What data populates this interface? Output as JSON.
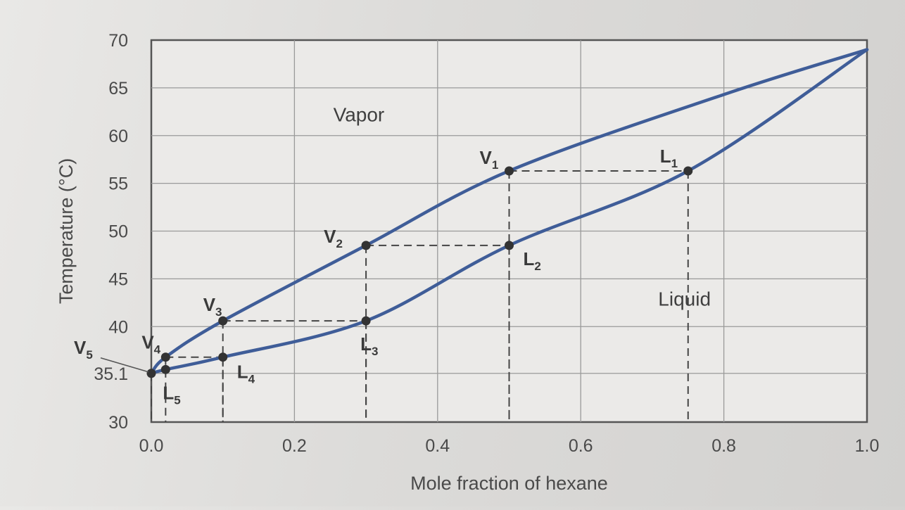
{
  "chart_data": {
    "type": "line",
    "title": "",
    "xlabel": "Mole fraction of hexane",
    "ylabel": "Temperature (°C)",
    "xlim": [
      0.0,
      1.0
    ],
    "ylim": [
      30,
      70
    ],
    "grid": true,
    "x_ticks": [
      "0.0",
      "0.2",
      "0.4",
      "0.6",
      "0.8",
      "1.0"
    ],
    "y_ticks": [
      "30",
      "35.1",
      "40",
      "45",
      "50",
      "55",
      "60",
      "65",
      "70"
    ],
    "y_tick_values": [
      30,
      35.1,
      40,
      45,
      50,
      55,
      60,
      65,
      70
    ],
    "series": [
      {
        "curve": "vapor",
        "color": "#3f5d98",
        "x": [
          0.0,
          0.02,
          0.1,
          0.3,
          0.5,
          0.8,
          1.0
        ],
        "y": [
          35.1,
          36.8,
          40.6,
          48.5,
          56.3,
          64.3,
          69.0
        ]
      },
      {
        "curve": "liquid",
        "color": "#3f5d98",
        "x": [
          0.0,
          0.02,
          0.1,
          0.3,
          0.5,
          0.75,
          1.0
        ],
        "y": [
          35.1,
          35.5,
          36.8,
          40.6,
          48.5,
          56.3,
          69.0
        ]
      }
    ],
    "regions": [
      {
        "text": "Vapor",
        "x": 0.29,
        "y": 61.5
      },
      {
        "text": "Liquid",
        "x": 0.745,
        "y": 42.2
      }
    ],
    "points": [
      {
        "main": "V",
        "sub": "1",
        "x": 0.5,
        "y": 56.3
      },
      {
        "main": "L",
        "sub": "1",
        "x": 0.75,
        "y": 56.3
      },
      {
        "main": "V",
        "sub": "2",
        "x": 0.3,
        "y": 48.5
      },
      {
        "main": "L",
        "sub": "2",
        "x": 0.5,
        "y": 48.5
      },
      {
        "main": "V",
        "sub": "3",
        "x": 0.1,
        "y": 40.6
      },
      {
        "main": "L",
        "sub": "3",
        "x": 0.3,
        "y": 40.6
      },
      {
        "main": "V",
        "sub": "4",
        "x": 0.02,
        "y": 36.8
      },
      {
        "main": "L",
        "sub": "4",
        "x": 0.1,
        "y": 36.8
      },
      {
        "main": "V",
        "sub": "5",
        "x": 0.0,
        "y": 35.1
      },
      {
        "main": "L",
        "sub": "5",
        "x": 0.02,
        "y": 35.5
      }
    ],
    "tie_lines": [
      {
        "x1": 0.5,
        "x2": 0.75,
        "y": 56.3
      },
      {
        "x1": 0.3,
        "x2": 0.5,
        "y": 48.5
      },
      {
        "x1": 0.1,
        "x2": 0.3,
        "y": 40.6
      },
      {
        "x1": 0.02,
        "x2": 0.1,
        "y": 36.8
      }
    ]
  }
}
